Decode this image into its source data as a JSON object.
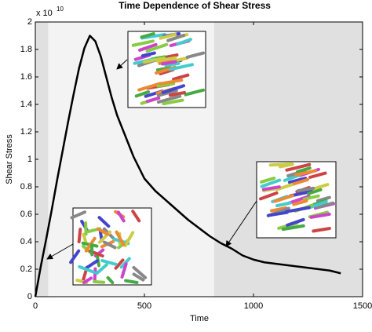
{
  "chart_data": {
    "type": "line",
    "title": "Time Dependence of Shear Stress",
    "x_label": "Time",
    "y_label": "Shear Stress",
    "y_multiplier": {
      "base": "x 10",
      "exponent": "10"
    },
    "x": [
      0,
      25,
      50,
      75,
      100,
      125,
      150,
      175,
      200,
      225,
      250,
      275,
      300,
      325,
      350,
      375,
      400,
      450,
      500,
      550,
      600,
      650,
      700,
      750,
      800,
      850,
      900,
      950,
      1000,
      1050,
      1100,
      1150,
      1200,
      1250,
      1300,
      1350,
      1400
    ],
    "series": [
      {
        "color": "#000000",
        "values": [
          0,
          0.22,
          0.42,
          0.63,
          0.85,
          1.06,
          1.27,
          1.47,
          1.66,
          1.81,
          1.9,
          1.86,
          1.75,
          1.6,
          1.45,
          1.32,
          1.22,
          1.02,
          0.86,
          0.77,
          0.7,
          0.63,
          0.56,
          0.5,
          0.44,
          0.39,
          0.35,
          0.3,
          0.27,
          0.25,
          0.24,
          0.23,
          0.22,
          0.21,
          0.2,
          0.19,
          0.17
        ]
      }
    ],
    "xlim": [
      0,
      1500
    ],
    "xticks": [
      0,
      500,
      1000,
      1500
    ],
    "ylim": [
      0,
      2
    ],
    "yticks": [
      0,
      0.2,
      0.4,
      0.6,
      0.8,
      1,
      1.2,
      1.4,
      1.6,
      1.8,
      2
    ],
    "regions": [
      {
        "xmin": 0,
        "xmax": 60,
        "color": "#e0e0e0"
      },
      {
        "xmin": 60,
        "xmax": 820,
        "color": "#f3f3f3"
      },
      {
        "xmin": 820,
        "xmax": 1500,
        "color": "#e0e0e0"
      }
    ]
  }
}
